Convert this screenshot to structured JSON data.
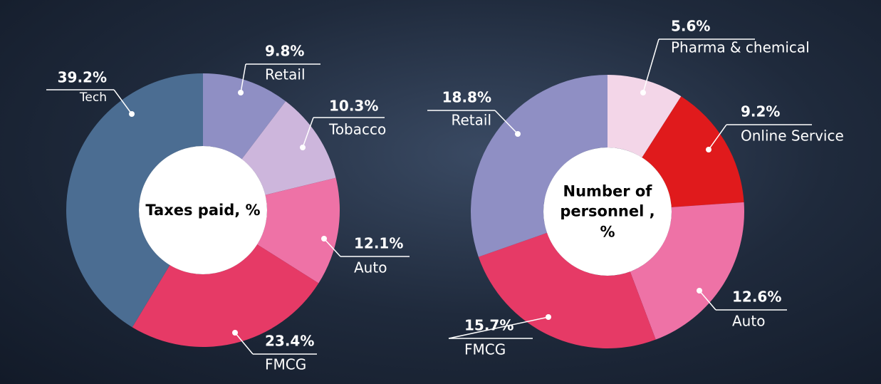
{
  "chart_data": [
    {
      "type": "donut",
      "title": "Taxes paid, %",
      "categories": [
        "Retail",
        "Tobacco",
        "Auto",
        "FMCG",
        "Tech"
      ],
      "values": [
        9.8,
        10.3,
        12.1,
        23.4,
        39.2
      ],
      "value_labels": [
        "9.8%",
        "10.3%",
        "12.1%",
        "23.4%",
        "39.2%"
      ],
      "colors": [
        "#8f8fc4",
        "#cdb6dc",
        "#ee72a6",
        "#e63a66",
        "#4b6d92"
      ]
    },
    {
      "type": "donut",
      "title": "Number of personnel , %",
      "categories": [
        "Pharma & chemical",
        "Online Service",
        "Auto",
        "FMCG",
        "Retail"
      ],
      "values": [
        5.6,
        9.2,
        12.6,
        15.7,
        18.8
      ],
      "value_labels": [
        "5.6%",
        "9.2%",
        "12.6%",
        "15.7%",
        "18.8%"
      ],
      "colors": [
        "#f3d6e8",
        "#e01a1c",
        "#ee72a6",
        "#e63a66",
        "#8f8fc4"
      ]
    }
  ]
}
